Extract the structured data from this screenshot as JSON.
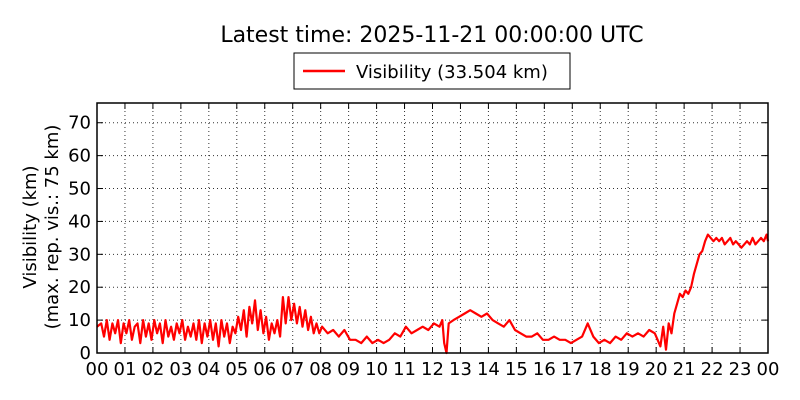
{
  "chart_data": {
    "type": "line",
    "title": "Latest time: 2025-11-21 00:00:00 UTC",
    "xlabel": "",
    "ylabel_line1": "Visibility (km)",
    "ylabel_line2": "(max. rep. vis.: 75 km)",
    "xlim": [
      0,
      24
    ],
    "ylim": [
      0,
      76
    ],
    "x_ticks": [
      0,
      1,
      2,
      3,
      4,
      5,
      6,
      7,
      8,
      9,
      10,
      11,
      12,
      13,
      14,
      15,
      16,
      17,
      18,
      19,
      20,
      21,
      22,
      23,
      24
    ],
    "x_tick_labels": [
      "00",
      "01",
      "02",
      "03",
      "04",
      "05",
      "06",
      "07",
      "08",
      "09",
      "10",
      "11",
      "12",
      "13",
      "14",
      "15",
      "16",
      "17",
      "18",
      "19",
      "20",
      "21",
      "22",
      "23",
      "00"
    ],
    "y_ticks": [
      0,
      10,
      20,
      30,
      40,
      50,
      60,
      70
    ],
    "y_tick_labels": [
      "0",
      "10",
      "20",
      "30",
      "40",
      "50",
      "60",
      "70"
    ],
    "grid": true,
    "legend_position": "top-center",
    "series": [
      {
        "name": "Visibility (33.504 km)",
        "color": "#ff0000",
        "points": [
          [
            0.0,
            8
          ],
          [
            0.15,
            9
          ],
          [
            0.25,
            5
          ],
          [
            0.35,
            10
          ],
          [
            0.45,
            4
          ],
          [
            0.55,
            9
          ],
          [
            0.65,
            6
          ],
          [
            0.75,
            10
          ],
          [
            0.85,
            3
          ],
          [
            0.95,
            9
          ],
          [
            1.05,
            6
          ],
          [
            1.15,
            10
          ],
          [
            1.25,
            4
          ],
          [
            1.35,
            8
          ],
          [
            1.45,
            9
          ],
          [
            1.55,
            3
          ],
          [
            1.65,
            10
          ],
          [
            1.75,
            5
          ],
          [
            1.85,
            9
          ],
          [
            1.95,
            4
          ],
          [
            2.05,
            10
          ],
          [
            2.15,
            6
          ],
          [
            2.25,
            9
          ],
          [
            2.35,
            3
          ],
          [
            2.45,
            10
          ],
          [
            2.55,
            5
          ],
          [
            2.65,
            8
          ],
          [
            2.75,
            4
          ],
          [
            2.85,
            9
          ],
          [
            2.95,
            6
          ],
          [
            3.05,
            10
          ],
          [
            3.15,
            4
          ],
          [
            3.25,
            8
          ],
          [
            3.35,
            5
          ],
          [
            3.45,
            9
          ],
          [
            3.55,
            4
          ],
          [
            3.65,
            10
          ],
          [
            3.75,
            3
          ],
          [
            3.85,
            9
          ],
          [
            3.95,
            5
          ],
          [
            4.05,
            10
          ],
          [
            4.15,
            4
          ],
          [
            4.25,
            9
          ],
          [
            4.35,
            2
          ],
          [
            4.45,
            10
          ],
          [
            4.55,
            5
          ],
          [
            4.65,
            9
          ],
          [
            4.75,
            3
          ],
          [
            4.85,
            8
          ],
          [
            4.95,
            6
          ],
          [
            5.05,
            11
          ],
          [
            5.15,
            7
          ],
          [
            5.25,
            13
          ],
          [
            5.35,
            5
          ],
          [
            5.45,
            14
          ],
          [
            5.55,
            9
          ],
          [
            5.65,
            16
          ],
          [
            5.75,
            7
          ],
          [
            5.85,
            13
          ],
          [
            5.95,
            6
          ],
          [
            6.05,
            11
          ],
          [
            6.15,
            4
          ],
          [
            6.25,
            9
          ],
          [
            6.35,
            6
          ],
          [
            6.45,
            10
          ],
          [
            6.55,
            5
          ],
          [
            6.65,
            17
          ],
          [
            6.75,
            9
          ],
          [
            6.85,
            17
          ],
          [
            6.95,
            10
          ],
          [
            7.05,
            15
          ],
          [
            7.15,
            9
          ],
          [
            7.25,
            14
          ],
          [
            7.35,
            8
          ],
          [
            7.45,
            13
          ],
          [
            7.55,
            7
          ],
          [
            7.65,
            11
          ],
          [
            7.75,
            6
          ],
          [
            7.85,
            9
          ],
          [
            7.95,
            6
          ],
          [
            8.05,
            8
          ],
          [
            8.25,
            6
          ],
          [
            8.45,
            7
          ],
          [
            8.65,
            5
          ],
          [
            8.85,
            7
          ],
          [
            9.05,
            4
          ],
          [
            9.25,
            4
          ],
          [
            9.45,
            3
          ],
          [
            9.65,
            5
          ],
          [
            9.85,
            3
          ],
          [
            10.05,
            4
          ],
          [
            10.25,
            3
          ],
          [
            10.45,
            4
          ],
          [
            10.65,
            6
          ],
          [
            10.85,
            5
          ],
          [
            11.05,
            8
          ],
          [
            11.25,
            6
          ],
          [
            11.45,
            7
          ],
          [
            11.65,
            8
          ],
          [
            11.85,
            7
          ],
          [
            12.05,
            9
          ],
          [
            12.25,
            8
          ],
          [
            12.35,
            10
          ],
          [
            12.42,
            3
          ],
          [
            12.5,
            0
          ],
          [
            12.58,
            9
          ],
          [
            12.75,
            10
          ],
          [
            12.95,
            11
          ],
          [
            13.15,
            12
          ],
          [
            13.35,
            13
          ],
          [
            13.55,
            12
          ],
          [
            13.75,
            11
          ],
          [
            13.95,
            12
          ],
          [
            14.15,
            10
          ],
          [
            14.35,
            9
          ],
          [
            14.55,
            8
          ],
          [
            14.75,
            10
          ],
          [
            14.95,
            7
          ],
          [
            15.15,
            6
          ],
          [
            15.35,
            5
          ],
          [
            15.55,
            5
          ],
          [
            15.75,
            6
          ],
          [
            15.95,
            4
          ],
          [
            16.15,
            4
          ],
          [
            16.35,
            5
          ],
          [
            16.55,
            4
          ],
          [
            16.75,
            4
          ],
          [
            16.95,
            3
          ],
          [
            17.15,
            4
          ],
          [
            17.35,
            5
          ],
          [
            17.55,
            9
          ],
          [
            17.75,
            5
          ],
          [
            17.95,
            3
          ],
          [
            18.15,
            4
          ],
          [
            18.35,
            3
          ],
          [
            18.55,
            5
          ],
          [
            18.75,
            4
          ],
          [
            18.95,
            6
          ],
          [
            19.15,
            5
          ],
          [
            19.35,
            6
          ],
          [
            19.55,
            5
          ],
          [
            19.75,
            7
          ],
          [
            19.95,
            6
          ],
          [
            20.05,
            4
          ],
          [
            20.15,
            2
          ],
          [
            20.25,
            8
          ],
          [
            20.35,
            1
          ],
          [
            20.45,
            9
          ],
          [
            20.55,
            6
          ],
          [
            20.65,
            12
          ],
          [
            20.75,
            15
          ],
          [
            20.85,
            18
          ],
          [
            20.95,
            17
          ],
          [
            21.05,
            19
          ],
          [
            21.15,
            18
          ],
          [
            21.25,
            20
          ],
          [
            21.35,
            24
          ],
          [
            21.45,
            27
          ],
          [
            21.55,
            30
          ],
          [
            21.65,
            31
          ],
          [
            21.75,
            34
          ],
          [
            21.85,
            36
          ],
          [
            21.95,
            35
          ],
          [
            22.05,
            34
          ],
          [
            22.15,
            35
          ],
          [
            22.25,
            34
          ],
          [
            22.35,
            35
          ],
          [
            22.45,
            33
          ],
          [
            22.55,
            34
          ],
          [
            22.65,
            35
          ],
          [
            22.75,
            33
          ],
          [
            22.85,
            34
          ],
          [
            22.95,
            33
          ],
          [
            23.05,
            32
          ],
          [
            23.15,
            33
          ],
          [
            23.25,
            34
          ],
          [
            23.35,
            33
          ],
          [
            23.45,
            35
          ],
          [
            23.55,
            33
          ],
          [
            23.65,
            34
          ],
          [
            23.75,
            35
          ],
          [
            23.85,
            34
          ],
          [
            23.95,
            36
          ],
          [
            24.0,
            34
          ]
        ]
      }
    ]
  }
}
